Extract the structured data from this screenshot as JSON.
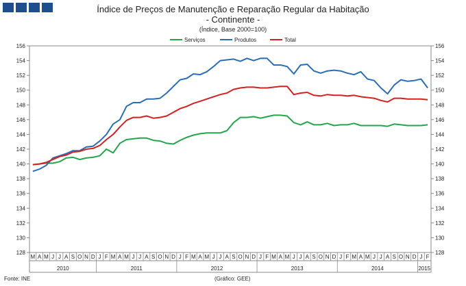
{
  "header": {
    "title": "Índice de Preços de Manutenção e Reparação Regular da Habitação",
    "subtitle": "- Continente -",
    "note": "(Índice, Base 2000=100)"
  },
  "footer": {
    "source": "Fonte: INE",
    "credit": "(Gráfico: GEE)"
  },
  "colors": {
    "servicos": "#22a64a",
    "produtos": "#2a6db5",
    "total": "#d42020",
    "axis": "#888888"
  },
  "chart_data": {
    "type": "line",
    "x": [
      "2010-03",
      "2010-04",
      "2010-05",
      "2010-06",
      "2010-07",
      "2010-08",
      "2010-09",
      "2010-10",
      "2010-11",
      "2010-12",
      "2011-01",
      "2011-02",
      "2011-03",
      "2011-04",
      "2011-05",
      "2011-06",
      "2011-07",
      "2011-08",
      "2011-09",
      "2011-10",
      "2011-11",
      "2011-12",
      "2012-01",
      "2012-02",
      "2012-03",
      "2012-04",
      "2012-05",
      "2012-06",
      "2012-07",
      "2012-08",
      "2012-09",
      "2012-10",
      "2012-11",
      "2012-12",
      "2013-01",
      "2013-02",
      "2013-03",
      "2013-04",
      "2013-05",
      "2013-06",
      "2013-07",
      "2013-08",
      "2013-09",
      "2013-10",
      "2013-11",
      "2013-12",
      "2014-01",
      "2014-02",
      "2014-03",
      "2014-04",
      "2014-05",
      "2014-06",
      "2014-07",
      "2014-08",
      "2014-09",
      "2014-10",
      "2014-11",
      "2014-12",
      "2015-01",
      "2015-02"
    ],
    "x_tick_labels": [
      "M",
      "A",
      "M",
      "J",
      "J",
      "A",
      "S",
      "O",
      "N",
      "D",
      "J",
      "F",
      "M",
      "A",
      "M",
      "J",
      "J",
      "A",
      "S",
      "O",
      "N",
      "D",
      "J",
      "F",
      "M",
      "A",
      "M",
      "J",
      "J",
      "A",
      "S",
      "O",
      "N",
      "D",
      "J",
      "F",
      "M",
      "A",
      "M",
      "J",
      "J",
      "A",
      "S",
      "O",
      "N",
      "D",
      "J",
      "F",
      "M",
      "A",
      "M",
      "J",
      "J",
      "A",
      "S",
      "O",
      "N",
      "D",
      "J",
      "F"
    ],
    "year_labels": [
      {
        "label": "2010",
        "start": 0,
        "end": 9
      },
      {
        "label": "2011",
        "start": 10,
        "end": 21
      },
      {
        "label": "2012",
        "start": 22,
        "end": 33
      },
      {
        "label": "2013",
        "start": 34,
        "end": 45
      },
      {
        "label": "2014",
        "start": 46,
        "end": 57
      },
      {
        "label": "2015",
        "start": 58,
        "end": 59
      }
    ],
    "ylim": [
      128,
      156
    ],
    "y_ticks": [
      128,
      130,
      132,
      134,
      136,
      138,
      140,
      142,
      144,
      146,
      148,
      150,
      152,
      154,
      156
    ],
    "legend_position": "top",
    "grid": false,
    "series": [
      {
        "name": "Serviços",
        "color_key": "servicos",
        "values": [
          139.9,
          140.0,
          140.1,
          140.1,
          140.3,
          140.8,
          140.9,
          140.6,
          140.8,
          140.9,
          141.1,
          142.0,
          141.5,
          142.8,
          143.3,
          143.4,
          143.5,
          143.5,
          143.2,
          143.1,
          142.8,
          142.7,
          143.2,
          143.6,
          143.9,
          144.1,
          144.2,
          144.2,
          144.2,
          144.5,
          145.6,
          146.3,
          146.3,
          146.4,
          146.2,
          146.4,
          146.6,
          146.6,
          146.5,
          145.6,
          145.3,
          145.7,
          145.3,
          145.3,
          145.5,
          145.2,
          145.3,
          145.3,
          145.5,
          145.2,
          145.2,
          145.2,
          145.2,
          145.1,
          145.4,
          145.3,
          145.2,
          145.2,
          145.2,
          145.3
        ]
      },
      {
        "name": "Produtos",
        "color_key": "produtos",
        "values": [
          139.0,
          139.3,
          139.8,
          140.8,
          141.1,
          141.4,
          141.8,
          141.8,
          142.3,
          142.4,
          143.1,
          144.0,
          145.4,
          146.0,
          147.8,
          148.3,
          148.3,
          148.8,
          148.8,
          148.9,
          149.6,
          150.5,
          151.4,
          151.6,
          152.2,
          152.1,
          152.5,
          153.2,
          154.0,
          154.1,
          154.2,
          153.9,
          154.3,
          154.0,
          154.3,
          154.3,
          153.4,
          153.4,
          153.2,
          152.2,
          153.4,
          153.5,
          152.6,
          152.3,
          152.6,
          152.7,
          152.6,
          152.3,
          152.1,
          152.5,
          151.5,
          151.3,
          150.3,
          149.5,
          150.7,
          151.4,
          151.2,
          151.3,
          151.5,
          150.3
        ]
      },
      {
        "name": "Total",
        "color_key": "total",
        "values": [
          139.9,
          140.0,
          140.2,
          140.6,
          141.0,
          141.2,
          141.6,
          141.7,
          142.0,
          142.1,
          142.5,
          143.3,
          144.0,
          145.0,
          145.9,
          146.3,
          146.3,
          146.5,
          146.2,
          146.3,
          146.5,
          147.0,
          147.5,
          147.8,
          148.2,
          148.5,
          148.8,
          149.1,
          149.4,
          149.6,
          150.1,
          150.3,
          150.4,
          150.4,
          150.3,
          150.3,
          150.4,
          150.5,
          150.5,
          149.4,
          149.6,
          149.7,
          149.3,
          149.2,
          149.4,
          149.3,
          149.3,
          149.2,
          149.3,
          149.1,
          149.0,
          148.9,
          148.6,
          148.4,
          148.9,
          148.9,
          148.8,
          148.8,
          148.8,
          148.7
        ]
      }
    ]
  }
}
